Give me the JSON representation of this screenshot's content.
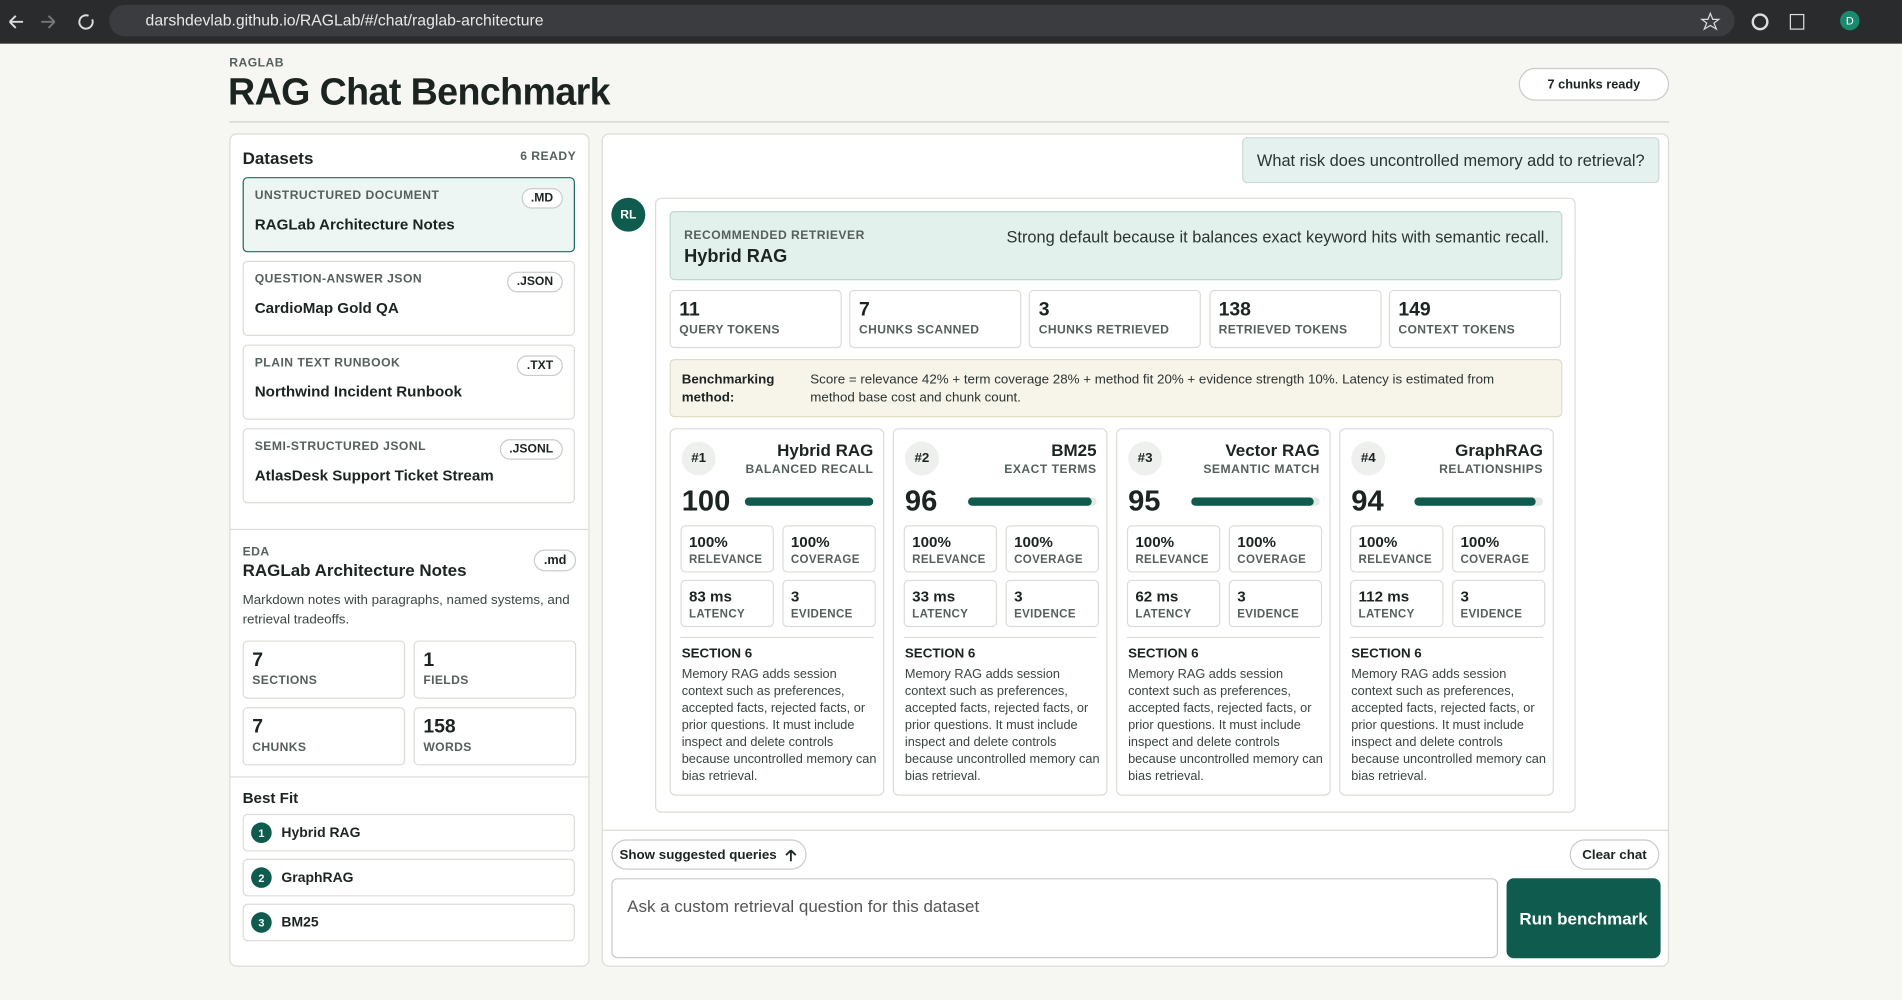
{
  "browser": {
    "url": "darshdevlab.github.io/RAGLab/#/chat/raglab-architecture",
    "avatar": "D"
  },
  "header": {
    "eyebrow": "RAGLAB",
    "title": "RAG Chat Benchmark",
    "status": "7 chunks ready"
  },
  "datasets": {
    "title": "Datasets",
    "count": "6 READY",
    "items": [
      {
        "kind": "UNSTRUCTURED DOCUMENT",
        "ext": ".MD",
        "name": "RAGLab Architecture Notes"
      },
      {
        "kind": "QUESTION-ANSWER JSON",
        "ext": ".JSON",
        "name": "CardioMap Gold QA"
      },
      {
        "kind": "PLAIN TEXT RUNBOOK",
        "ext": ".TXT",
        "name": "Northwind Incident Runbook"
      },
      {
        "kind": "SEMI-STRUCTURED JSONL",
        "ext": ".JSONL",
        "name": "AtlasDesk Support Ticket Stream"
      }
    ]
  },
  "eda": {
    "label": "EDA",
    "title": "RAGLab Architecture Notes",
    "ext": ".md",
    "description": "Markdown notes with paragraphs, named systems, and retrieval tradeoffs.",
    "stats": [
      {
        "value": 7,
        "label": "SECTIONS"
      },
      {
        "value": 1,
        "label": "FIELDS"
      },
      {
        "value": 7,
        "label": "CHUNKS"
      },
      {
        "value": 158,
        "label": "WORDS"
      }
    ]
  },
  "best_fit": {
    "title": "Best Fit",
    "items": [
      {
        "rank": 1,
        "name": "Hybrid RAG"
      },
      {
        "rank": 2,
        "name": "GraphRAG"
      },
      {
        "rank": 3,
        "name": "BM25"
      }
    ]
  },
  "chat": {
    "question": "What risk does uncontrolled memory add to retrieval?",
    "avatar": "RL",
    "recommendation": {
      "label": "RECOMMENDED RETRIEVER",
      "name": "Hybrid RAG",
      "reason": "Strong default because it balances exact keyword hits with semantic recall."
    },
    "metrics": [
      {
        "value": 11,
        "label": "QUERY TOKENS"
      },
      {
        "value": 7,
        "label": "CHUNKS SCANNED"
      },
      {
        "value": 3,
        "label": "CHUNKS RETRIEVED"
      },
      {
        "value": 138,
        "label": "RETRIEVED TOKENS"
      },
      {
        "value": 149,
        "label": "CONTEXT TOKENS"
      }
    ],
    "method": {
      "label": "Benchmarking method:",
      "text": "Score = relevance 42% + term coverage 28% + method fit 20% + evidence strength 10%. Latency is estimated from method base cost and chunk count."
    },
    "results": [
      {
        "rank": "#1",
        "name": "Hybrid RAG",
        "tag": "BALANCED RECALL",
        "score": 100,
        "stats": [
          {
            "value": "100%",
            "label": "RELEVANCE"
          },
          {
            "value": "100%",
            "label": "COVERAGE"
          },
          {
            "value": "83 ms",
            "label": "LATENCY"
          },
          {
            "value": "3",
            "label": "EVIDENCE"
          }
        ],
        "section": "SECTION 6",
        "excerpt": "Memory RAG adds session context such as preferences, accepted facts, rejected facts, or prior questions. It must include inspect and delete controls because uncontrolled memory can bias retrieval."
      },
      {
        "rank": "#2",
        "name": "BM25",
        "tag": "EXACT TERMS",
        "score": 96,
        "stats": [
          {
            "value": "100%",
            "label": "RELEVANCE"
          },
          {
            "value": "100%",
            "label": "COVERAGE"
          },
          {
            "value": "33 ms",
            "label": "LATENCY"
          },
          {
            "value": "3",
            "label": "EVIDENCE"
          }
        ],
        "section": "SECTION 6",
        "excerpt": "Memory RAG adds session context such as preferences, accepted facts, rejected facts, or prior questions. It must include inspect and delete controls because uncontrolled memory can bias retrieval."
      },
      {
        "rank": "#3",
        "name": "Vector RAG",
        "tag": "SEMANTIC MATCH",
        "score": 95,
        "stats": [
          {
            "value": "100%",
            "label": "RELEVANCE"
          },
          {
            "value": "100%",
            "label": "COVERAGE"
          },
          {
            "value": "62 ms",
            "label": "LATENCY"
          },
          {
            "value": "3",
            "label": "EVIDENCE"
          }
        ],
        "section": "SECTION 6",
        "excerpt": "Memory RAG adds session context such as preferences, accepted facts, rejected facts, or prior questions. It must include inspect and delete controls because uncontrolled memory can bias retrieval."
      },
      {
        "rank": "#4",
        "name": "GraphRAG",
        "tag": "RELATIONSHIPS",
        "score": 94,
        "stats": [
          {
            "value": "100%",
            "label": "RELEVANCE"
          },
          {
            "value": "100%",
            "label": "COVERAGE"
          },
          {
            "value": "112 ms",
            "label": "LATENCY"
          },
          {
            "value": "3",
            "label": "EVIDENCE"
          }
        ],
        "section": "SECTION 6",
        "excerpt": "Memory RAG adds session context such as preferences, accepted facts, rejected facts, or prior questions. It must include inspect and delete controls because uncontrolled memory can bias retrieval."
      }
    ]
  },
  "controls": {
    "suggest": "Show suggested queries",
    "clear": "Clear chat",
    "placeholder": "Ask a custom retrieval question for this dataset",
    "run": "Run benchmark"
  }
}
